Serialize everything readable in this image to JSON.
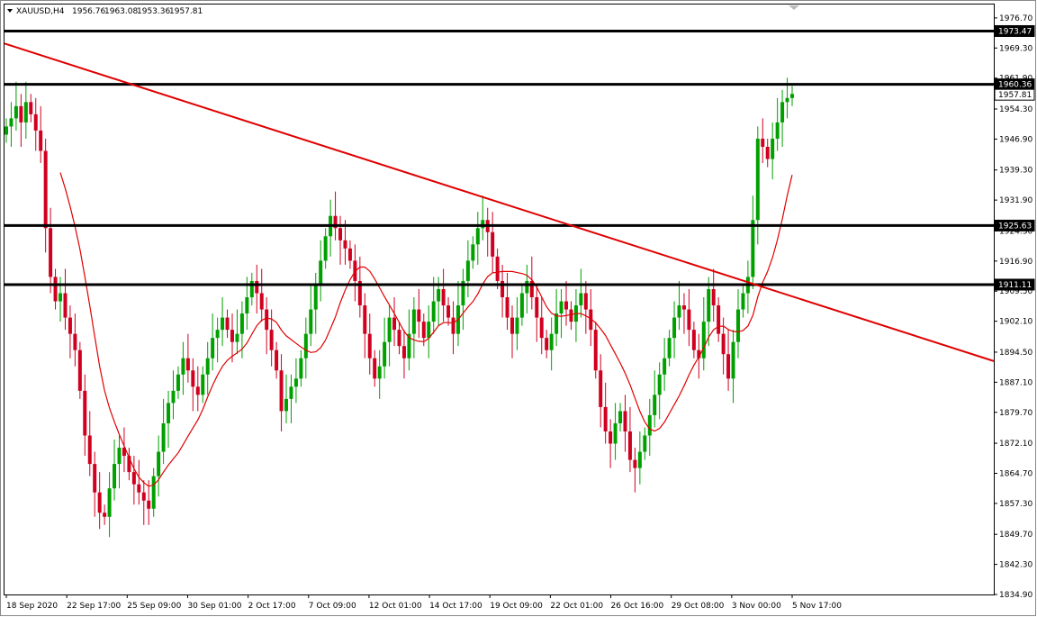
{
  "header": {
    "symbol": "XAUUSD,H4",
    "open": "1956.76",
    "high": "1963.08",
    "low": "1953.36",
    "close": "1957.81"
  },
  "colors": {
    "bull": "#00a000",
    "bear": "#d00020",
    "ma": "#e00000",
    "trendline": "#e00000",
    "level": "#000000",
    "background": "#ffffff",
    "grid": "none"
  },
  "chart_data": {
    "type": "candlestick",
    "timeframe": "H4",
    "ylim": [
      1834.9,
      1980
    ],
    "y_ticks": [
      "1976.70",
      "1969.30",
      "1961.90",
      "1954.30",
      "1946.90",
      "1939.30",
      "1931.90",
      "1924.30",
      "1916.90",
      "1909.50",
      "1902.10",
      "1894.50",
      "1887.10",
      "1879.70",
      "1872.10",
      "1864.70",
      "1857.30",
      "1849.70",
      "1842.30",
      "1834.90"
    ],
    "x_ticks": [
      "18 Sep 2020",
      "22 Sep 17:00",
      "25 Sep 09:00",
      "30 Sep 01:00",
      "2 Oct 17:00",
      "7 Oct 09:00",
      "12 Oct 01:00",
      "14 Oct 17:00",
      "19 Oct 09:00",
      "22 Oct 01:00",
      "26 Oct 16:00",
      "29 Oct 08:00",
      "3 Nov 00:00",
      "5 Nov 17:00"
    ],
    "horizontal_levels": [
      "1973.47",
      "1960.36",
      "1925.63",
      "1911.11"
    ],
    "price_labels": [
      "1973.47",
      "1960.36",
      "1957.81",
      "1925.63",
      "1911.11"
    ],
    "current_price": "1957.81",
    "trendline": {
      "from_price": 1970.4,
      "to_price": 1892.3
    },
    "closes": [
      1950,
      1952,
      1955,
      1951,
      1956,
      1953,
      1949,
      1944,
      1925,
      1913,
      1907,
      1909,
      1903,
      1899,
      1895,
      1885,
      1874,
      1867,
      1860,
      1855,
      1854,
      1861,
      1867,
      1871,
      1869,
      1865,
      1862,
      1860,
      1858,
      1856,
      1864,
      1870,
      1877,
      1882,
      1885,
      1889,
      1893,
      1890,
      1886,
      1884,
      1889,
      1893,
      1898,
      1900,
      1903,
      1900,
      1897,
      1899,
      1904,
      1908,
      1912,
      1909,
      1905,
      1900,
      1895,
      1890,
      1880,
      1883,
      1886,
      1888,
      1893,
      1899,
      1905,
      1911,
      1917,
      1923,
      1928,
      1925,
      1922,
      1920,
      1917,
      1912,
      1906,
      1899,
      1893,
      1888,
      1891,
      1897,
      1903,
      1900,
      1896,
      1893,
      1899,
      1905,
      1902,
      1898,
      1902,
      1907,
      1910,
      1906,
      1903,
      1899,
      1906,
      1912,
      1917,
      1921,
      1925,
      1927,
      1924,
      1918,
      1912,
      1908,
      1903,
      1899,
      1903,
      1909,
      1912,
      1908,
      1903,
      1898,
      1895,
      1899,
      1904,
      1907,
      1905,
      1902,
      1906,
      1909,
      1905,
      1900,
      1890,
      1881,
      1875,
      1872,
      1877,
      1880,
      1875,
      1868,
      1866,
      1870,
      1874,
      1879,
      1884,
      1889,
      1893,
      1898,
      1903,
      1906,
      1905,
      1900,
      1895,
      1893,
      1902,
      1910,
      1906,
      1899,
      1894,
      1888,
      1897,
      1905,
      1909,
      1913,
      1927,
      1947,
      1945,
      1942,
      1947,
      1951,
      1956,
      1957,
      1958
    ],
    "moving_average_note": "red moving average line overlay"
  }
}
